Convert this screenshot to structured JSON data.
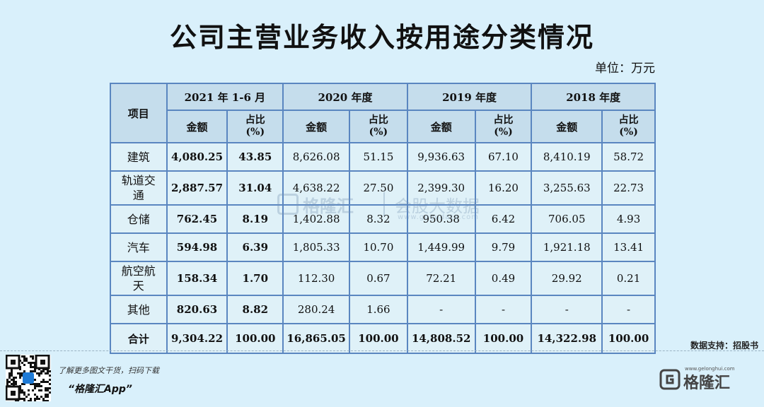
{
  "title": "公司主营业务收入按用途分类情况",
  "unit": "单位：万元",
  "table": {
    "item_header": "项目",
    "periods": [
      "2021 年 1-6 月",
      "2020 年度",
      "2019 年度",
      "2018 年度"
    ],
    "amount_label": "金额",
    "share_label": "占比",
    "share_unit": "(%)",
    "rows": [
      {
        "label": "建筑",
        "values": [
          "4,080.25",
          "43.85",
          "8,626.08",
          "51.15",
          "9,936.63",
          "67.10",
          "8,410.19",
          "58.72"
        ]
      },
      {
        "label": "轨道交通",
        "values": [
          "2,887.57",
          "31.04",
          "4,638.22",
          "27.50",
          "2,399.30",
          "16.20",
          "3,255.63",
          "22.73"
        ]
      },
      {
        "label": "仓储",
        "values": [
          "762.45",
          "8.19",
          "1,402.88",
          "8.32",
          "950.38",
          "6.42",
          "706.05",
          "4.93"
        ]
      },
      {
        "label": "汽车",
        "values": [
          "594.98",
          "6.39",
          "1,805.33",
          "10.70",
          "1,449.99",
          "9.79",
          "1,921.18",
          "13.41"
        ]
      },
      {
        "label": "航空航天",
        "values": [
          "158.34",
          "1.70",
          "112.30",
          "0.67",
          "72.21",
          "0.49",
          "29.92",
          "0.21"
        ]
      },
      {
        "label": "其他",
        "values": [
          "820.63",
          "8.82",
          "280.24",
          "1.66",
          "-",
          "-",
          "-",
          "-"
        ]
      }
    ],
    "total": {
      "label": "合计",
      "values": [
        "9,304.22",
        "100.00",
        "16,865.05",
        "100.00",
        "14,808.52",
        "100.00",
        "14,322.98",
        "100.00"
      ]
    }
  },
  "source": "数据支持：招股书",
  "watermark": {
    "brand": "格隆汇",
    "slogan": "会股大数据",
    "url": "www.gogudata.com"
  },
  "footer": {
    "promo_line": "了解更多图文干货，扫码下载",
    "app_name": "“格隆汇App”",
    "brand_name": "格隆汇",
    "brand_url": "www.gelonghui.com"
  }
}
